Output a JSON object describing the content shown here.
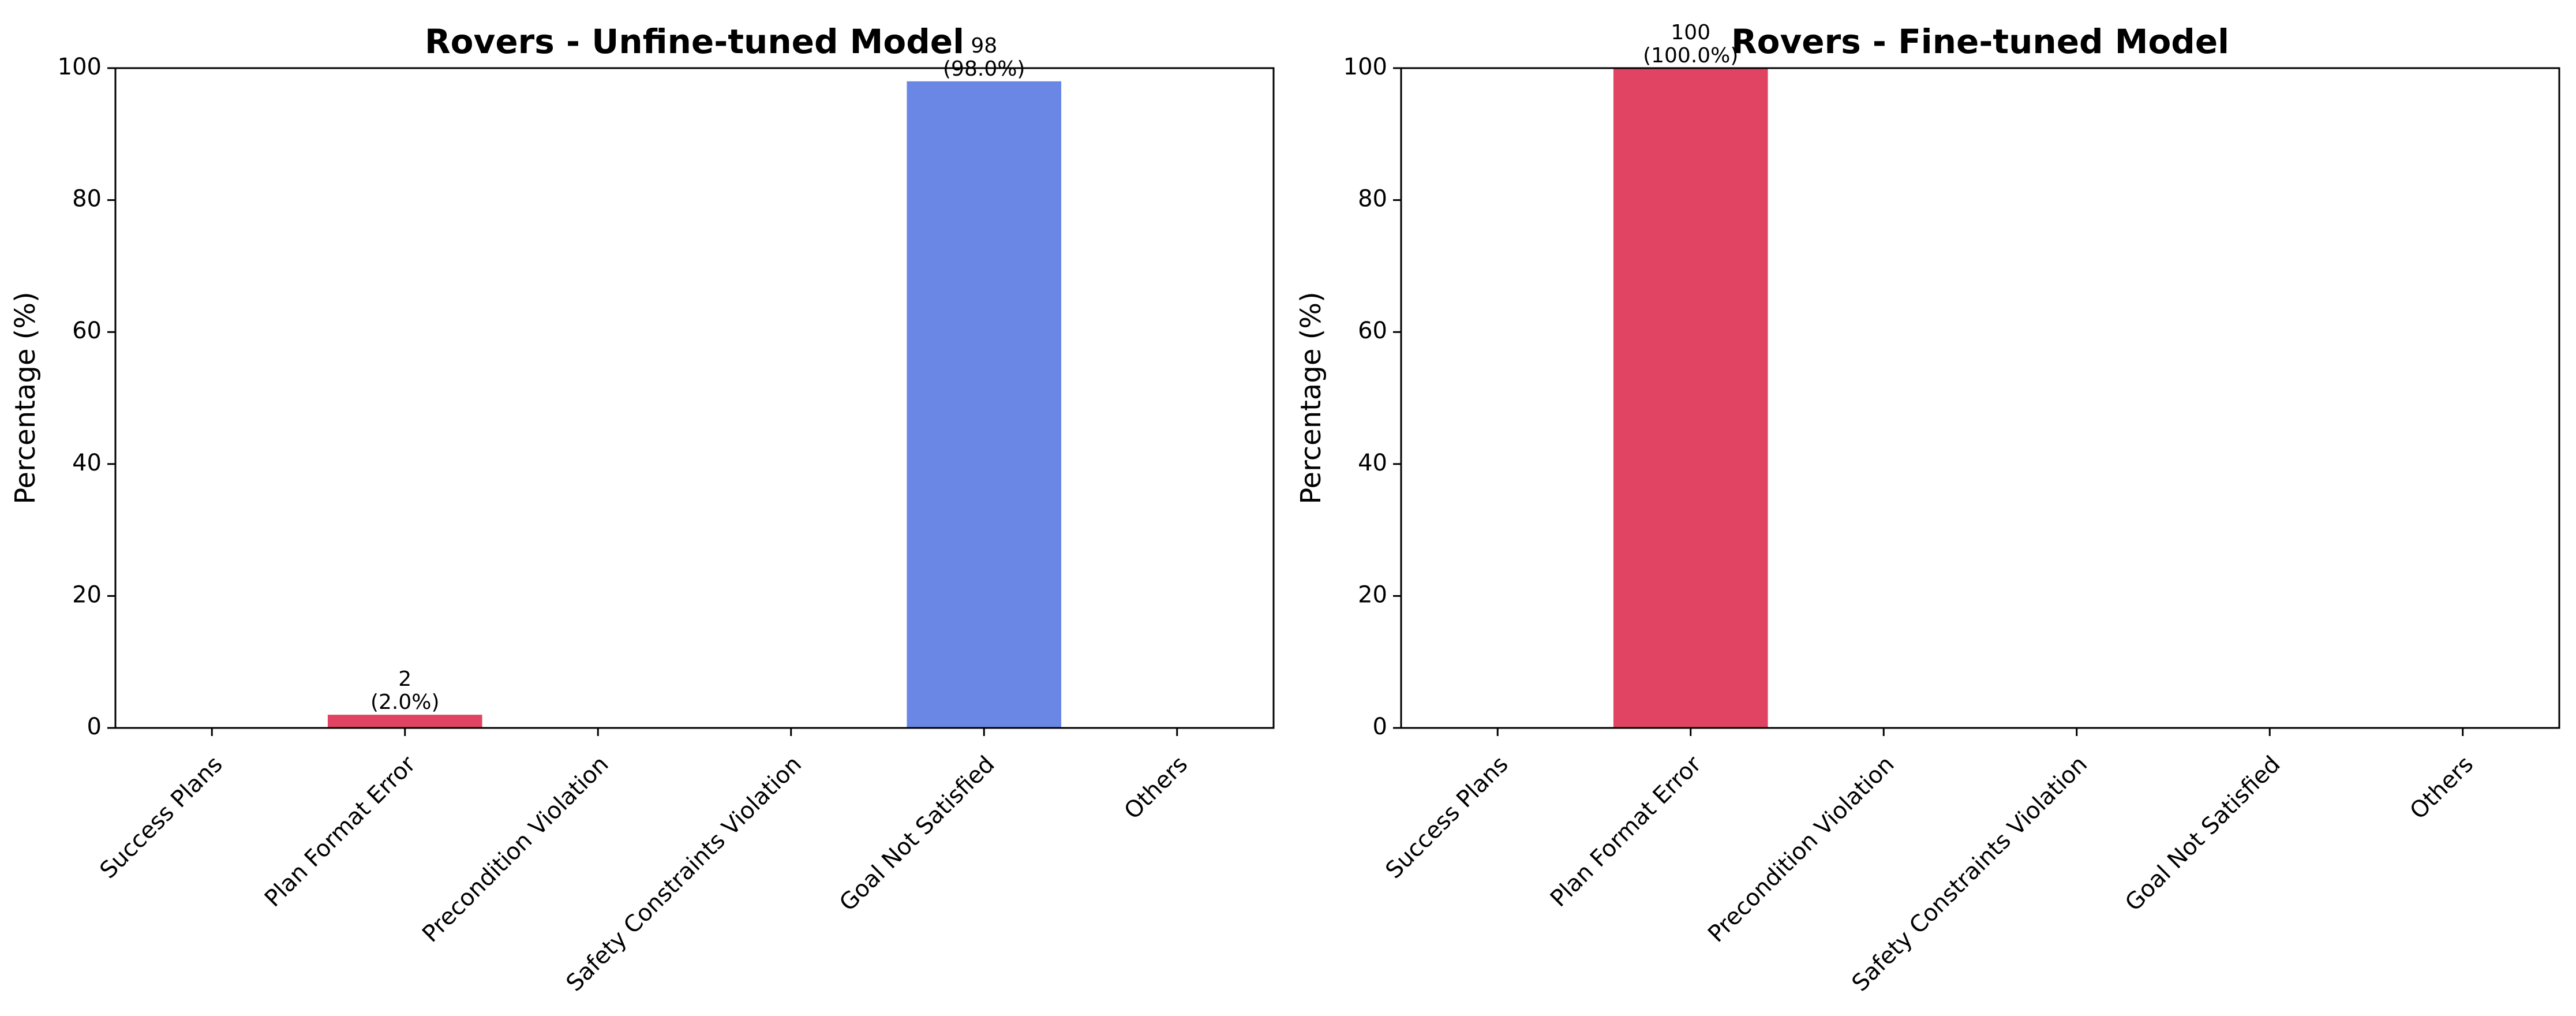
{
  "chart_data": [
    {
      "type": "bar",
      "title": "Rovers - Unfine-tuned Model",
      "xlabel": "",
      "ylabel": "Percentage (%)",
      "ylim": [
        0,
        100
      ],
      "yticks": [
        0,
        20,
        40,
        60,
        80,
        100
      ],
      "grid": false,
      "categories": [
        "Success Plans",
        "Plan Format Error",
        "Precondition Violation",
        "Safety Constraints Violation",
        "Goal Not Satisfied",
        "Others"
      ],
      "values": [
        0,
        2.0,
        0,
        0,
        98.0,
        0
      ],
      "counts": [
        0,
        2,
        0,
        0,
        98,
        0
      ],
      "data_labels": [
        null,
        "2\n(2.0%)",
        null,
        null,
        "98\n(98.0%)",
        null
      ],
      "colors": [
        "#2ca02c",
        "#e04462",
        "#ff9f1c",
        "#8e44ad",
        "#6b87e6",
        "#7f7f7f"
      ]
    },
    {
      "type": "bar",
      "title": "Rovers - Fine-tuned Model",
      "xlabel": "",
      "ylabel": "Percentage (%)",
      "ylim": [
        0,
        100
      ],
      "yticks": [
        0,
        20,
        40,
        60,
        80,
        100
      ],
      "grid": false,
      "categories": [
        "Success Plans",
        "Plan Format Error",
        "Precondition Violation",
        "Safety Constraints Violation",
        "Goal Not Satisfied",
        "Others"
      ],
      "values": [
        0,
        100.0,
        0,
        0,
        0,
        0
      ],
      "counts": [
        0,
        100,
        0,
        0,
        0,
        0
      ],
      "data_labels": [
        null,
        "100\n(100.0%)",
        null,
        null,
        null,
        null
      ],
      "colors": [
        "#2ca02c",
        "#e04462",
        "#ff9f1c",
        "#8e44ad",
        "#6b87e6",
        "#7f7f7f"
      ]
    }
  ]
}
